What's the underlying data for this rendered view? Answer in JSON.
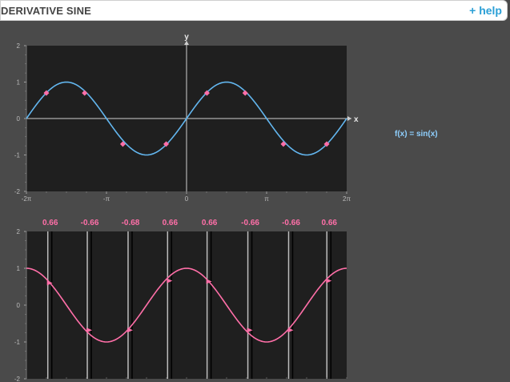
{
  "header": {
    "title": "DERIVATIVE SINE",
    "help_label": "+ help"
  },
  "formula": {
    "label": "f(x) = sin(x)"
  },
  "colors": {
    "sine_curve": "#63b7f0",
    "derivative_curve": "#ff6fa8",
    "marker": "#ff6fa8",
    "plot_bg": "#1f1f1f",
    "panel_bg": "#4a4a4a",
    "axis": "#cfcfcf",
    "help": "#2a9fd6"
  },
  "chart_data": [
    {
      "type": "line",
      "title": "",
      "xlabel": "x",
      "ylabel": "y",
      "xlim": [
        -6.2832,
        6.2832
      ],
      "ylim": [
        -2,
        2
      ],
      "x_ticks": [
        "-2π",
        "-π",
        "0",
        "π",
        "2π"
      ],
      "y_ticks": [
        "2",
        "1",
        "0",
        "-1",
        "-2"
      ],
      "series": [
        {
          "name": "f(x) = sin(x)",
          "function": "sin"
        }
      ],
      "points": [
        {
          "x": -5.5,
          "y": 0.7
        },
        {
          "x": -4.0,
          "y": 0.7
        },
        {
          "x": -2.5,
          "y": -0.7
        },
        {
          "x": -0.8,
          "y": -0.7
        },
        {
          "x": 0.8,
          "y": 0.7
        },
        {
          "x": 2.3,
          "y": 0.7
        },
        {
          "x": 3.8,
          "y": -0.7
        },
        {
          "x": 5.5,
          "y": -0.7
        }
      ]
    },
    {
      "type": "line",
      "title": "",
      "xlabel": "",
      "ylabel": "",
      "xlim": [
        -6.2832,
        6.2832
      ],
      "ylim": [
        -2,
        2
      ],
      "y_ticks": [
        "2",
        "1",
        "0",
        "-1",
        "-2"
      ],
      "slope_labels": [
        "0.66",
        "-0.66",
        "-0.68",
        "0.66",
        "0.66",
        "-0.66",
        "-0.66",
        "0.66"
      ],
      "series": [
        {
          "name": "",
          "function": "cos"
        }
      ],
      "points": [
        {
          "x": -5.35,
          "y": 0.6
        },
        {
          "x": -3.8,
          "y": -0.68
        },
        {
          "x": -2.2,
          "y": -0.68
        },
        {
          "x": -0.65,
          "y": 0.66
        },
        {
          "x": 0.9,
          "y": 0.64
        },
        {
          "x": 2.5,
          "y": -0.68
        },
        {
          "x": 4.1,
          "y": -0.68
        },
        {
          "x": 5.6,
          "y": 0.66
        }
      ]
    }
  ]
}
